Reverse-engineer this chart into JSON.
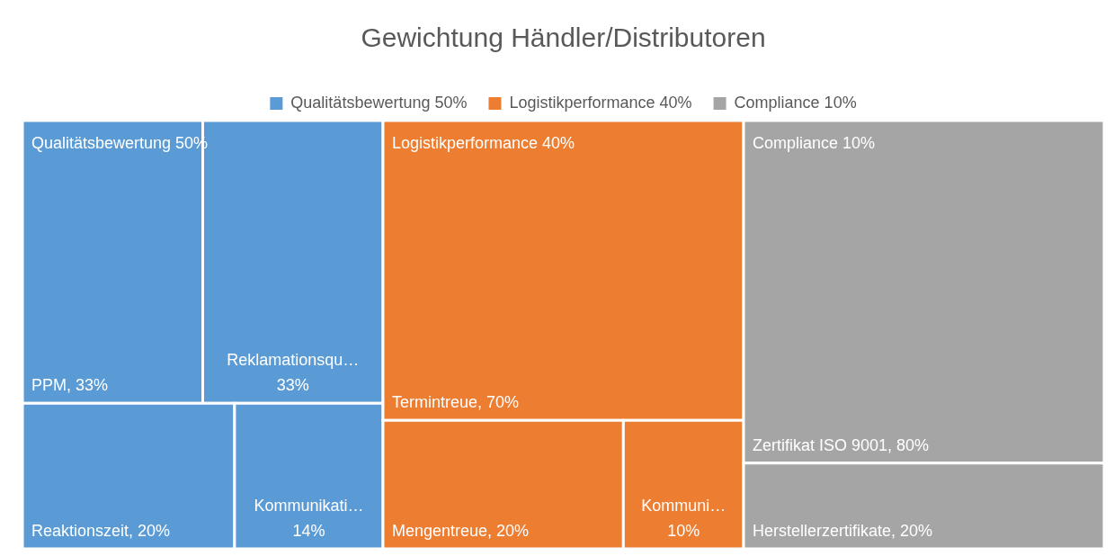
{
  "chart_data": {
    "type": "other",
    "title": "Gewichtung Händler/Distributoren",
    "legend": "top",
    "categories": [
      "PPM",
      "Reklamationsqu…",
      "Reaktionszeit",
      "Kommunikati…",
      "Termintreue",
      "Mengentreue",
      "Kommuni…",
      "Zertifikat ISO 9001",
      "Herstellerzertifikate"
    ],
    "series": [
      {
        "name": "Qualitätsbewertung 50%",
        "color": "#5b9bd5",
        "values": [
          33,
          33,
          20,
          14,
          null,
          null,
          null,
          null,
          null
        ],
        "value_labels": [
          ", 33%",
          "33%",
          ", 20%",
          "14%",
          null,
          null,
          null,
          null,
          null
        ]
      },
      {
        "name": "Logistikperformance 40%",
        "color": "#ed7d31",
        "values": [
          null,
          null,
          null,
          null,
          70,
          20,
          10,
          null,
          null
        ],
        "value_labels": [
          null,
          null,
          null,
          null,
          ", 70%",
          ", 20%",
          "10%",
          null,
          null
        ]
      },
      {
        "name": "Compliance 10%",
        "color": "#a5a5a5",
        "values": [
          null,
          null,
          null,
          null,
          null,
          null,
          null,
          80,
          20
        ],
        "value_labels": [
          null,
          null,
          null,
          null,
          null,
          null,
          null,
          ", 80%",
          ", 20%"
        ]
      }
    ]
  }
}
